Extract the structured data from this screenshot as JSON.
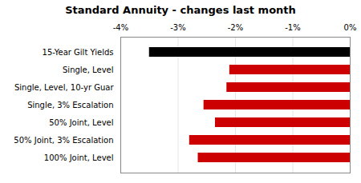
{
  "chart_data": {
    "type": "bar",
    "orientation": "horizontal",
    "title": "Standard Annuity - changes last month",
    "categories": [
      "15-Year Gilt Yields",
      "Single, Level",
      "Single, Level, 10-yr Guar",
      "Single, 3% Escalation",
      "50% Joint, Level",
      "50% Joint, 3% Escalation",
      "100% Joint, Level"
    ],
    "values": [
      -3.5,
      -2.1,
      -2.15,
      -2.55,
      -2.35,
      -2.8,
      -2.65
    ],
    "colors": [
      "#000000",
      "#cc0000",
      "#cc0000",
      "#cc0000",
      "#cc0000",
      "#cc0000",
      "#cc0000"
    ],
    "xlim": [
      -4,
      0
    ],
    "xticks": [
      {
        "value": -4,
        "label": "-4%"
      },
      {
        "value": -3,
        "label": "-3%"
      },
      {
        "value": -2,
        "label": "-2%"
      },
      {
        "value": -1,
        "label": "-1%"
      },
      {
        "value": 0,
        "label": "0%"
      }
    ],
    "grid": true
  }
}
